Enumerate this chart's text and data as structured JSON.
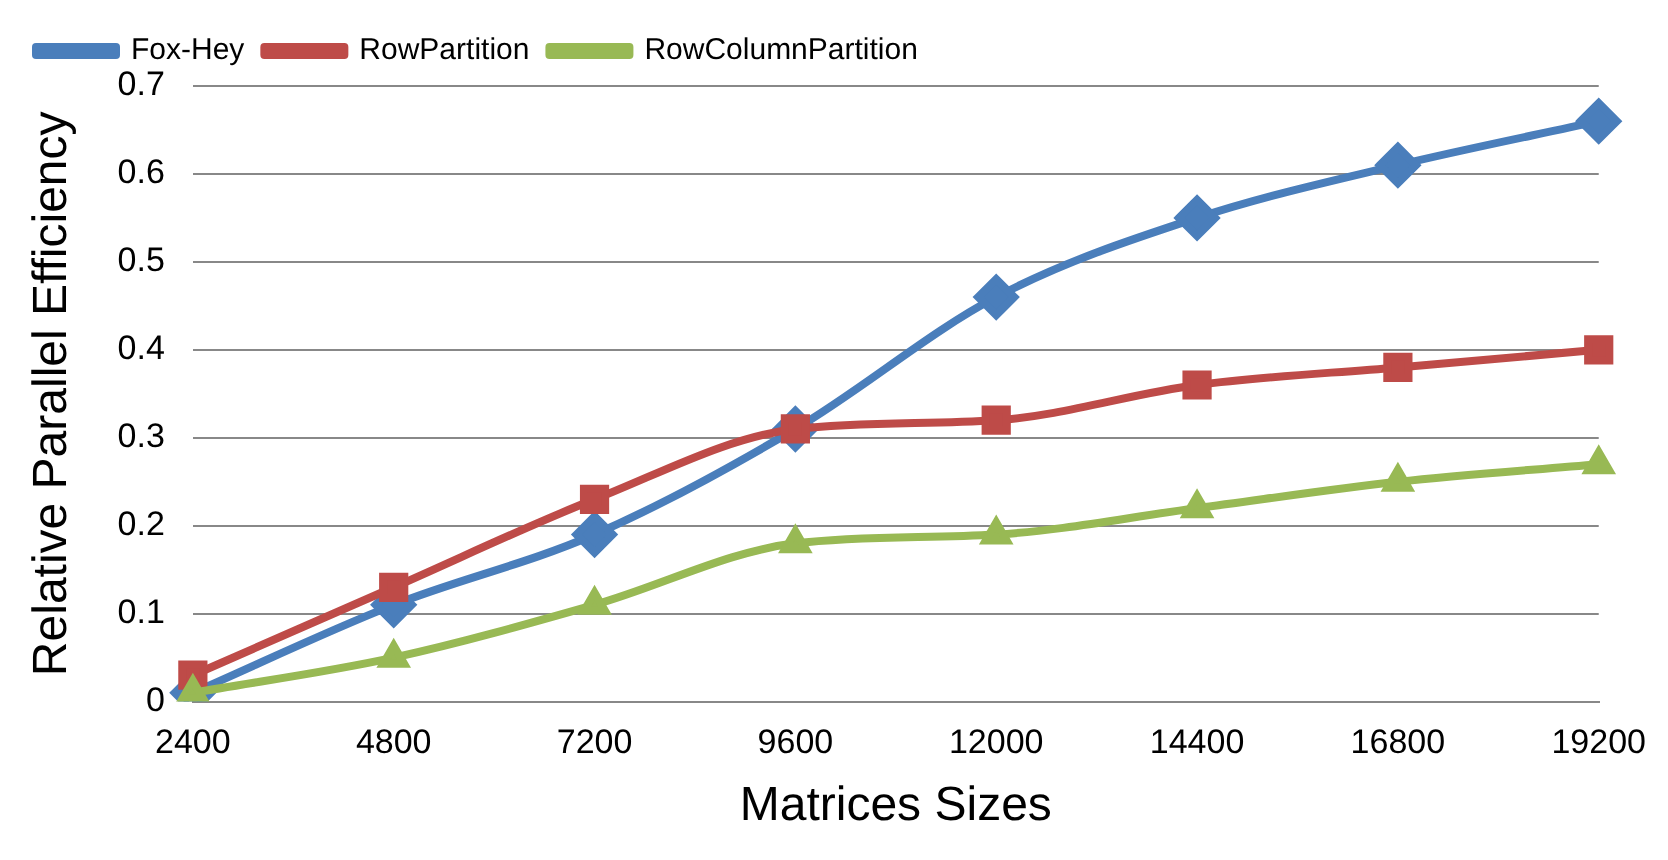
{
  "chart_data": {
    "type": "line",
    "xlabel": "Matrices Sizes",
    "ylabel": "Relative Parallel Efficiency",
    "categories": [
      "2400",
      "4800",
      "7200",
      "9600",
      "12000",
      "14400",
      "16800",
      "19200"
    ],
    "series": [
      {
        "name": "Fox-Hey",
        "color": "#4a7ebb",
        "marker": "diamond",
        "values": [
          0.01,
          0.11,
          0.19,
          0.31,
          0.46,
          0.55,
          0.61,
          0.66
        ]
      },
      {
        "name": "RowPartition",
        "color": "#be4b48",
        "marker": "square",
        "values": [
          0.03,
          0.13,
          0.23,
          0.31,
          0.32,
          0.36,
          0.38,
          0.4
        ]
      },
      {
        "name": "RowColumnPartition",
        "color": "#98b954",
        "marker": "triangle",
        "values": [
          0.01,
          0.05,
          0.11,
          0.18,
          0.19,
          0.22,
          0.25,
          0.27
        ]
      }
    ],
    "ylim": [
      0,
      0.7
    ],
    "yticks": [
      0,
      0.1,
      0.2,
      0.3,
      0.4,
      0.5,
      0.6,
      0.7
    ],
    "grid": "y",
    "legend": "top left"
  }
}
